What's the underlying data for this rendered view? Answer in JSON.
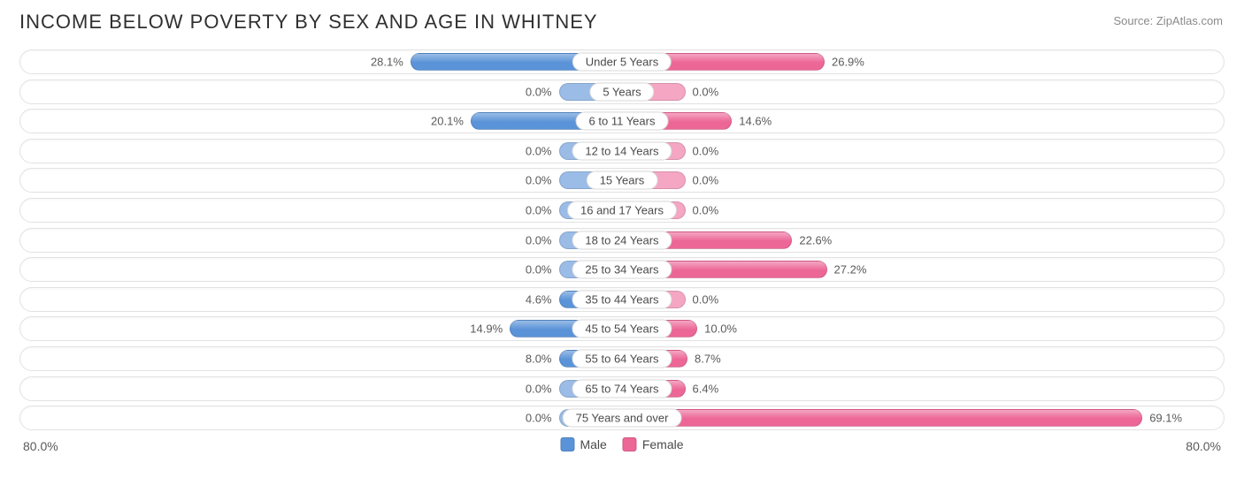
{
  "title": "INCOME BELOW POVERTY BY SEX AND AGE IN WHITNEY",
  "source": "Source: ZipAtlas.com",
  "chart": {
    "type": "diverging-bar",
    "axis_max": 80.0,
    "axis_label_left": "80.0%",
    "axis_label_right": "80.0%",
    "min_bar_pct": 10.5,
    "track_border": "#e2e2e2",
    "track_bg": "#ffffff",
    "label_fontsize": 13,
    "title_fontsize": 22,
    "colors": {
      "male_fill": "#5a93d8",
      "male_fill_light": "#9abce6",
      "female_fill": "#ec6696",
      "female_fill_light": "#f4a6c2"
    },
    "legend": {
      "male": "Male",
      "female": "Female"
    },
    "rows": [
      {
        "label": "Under 5 Years",
        "male": 28.1,
        "female": 26.9,
        "male_txt": "28.1%",
        "female_txt": "26.9%"
      },
      {
        "label": "5 Years",
        "male": 0.0,
        "female": 0.0,
        "male_txt": "0.0%",
        "female_txt": "0.0%"
      },
      {
        "label": "6 to 11 Years",
        "male": 20.1,
        "female": 14.6,
        "male_txt": "20.1%",
        "female_txt": "14.6%"
      },
      {
        "label": "12 to 14 Years",
        "male": 0.0,
        "female": 0.0,
        "male_txt": "0.0%",
        "female_txt": "0.0%"
      },
      {
        "label": "15 Years",
        "male": 0.0,
        "female": 0.0,
        "male_txt": "0.0%",
        "female_txt": "0.0%"
      },
      {
        "label": "16 and 17 Years",
        "male": 0.0,
        "female": 0.0,
        "male_txt": "0.0%",
        "female_txt": "0.0%"
      },
      {
        "label": "18 to 24 Years",
        "male": 0.0,
        "female": 22.6,
        "male_txt": "0.0%",
        "female_txt": "22.6%"
      },
      {
        "label": "25 to 34 Years",
        "male": 0.0,
        "female": 27.2,
        "male_txt": "0.0%",
        "female_txt": "27.2%"
      },
      {
        "label": "35 to 44 Years",
        "male": 4.6,
        "female": 0.0,
        "male_txt": "4.6%",
        "female_txt": "0.0%"
      },
      {
        "label": "45 to 54 Years",
        "male": 14.9,
        "female": 10.0,
        "male_txt": "14.9%",
        "female_txt": "10.0%"
      },
      {
        "label": "55 to 64 Years",
        "male": 8.0,
        "female": 8.7,
        "male_txt": "8.0%",
        "female_txt": "8.7%"
      },
      {
        "label": "65 to 74 Years",
        "male": 0.0,
        "female": 6.4,
        "male_txt": "0.0%",
        "female_txt": "6.4%"
      },
      {
        "label": "75 Years and over",
        "male": 0.0,
        "female": 69.1,
        "male_txt": "0.0%",
        "female_txt": "69.1%"
      }
    ]
  }
}
